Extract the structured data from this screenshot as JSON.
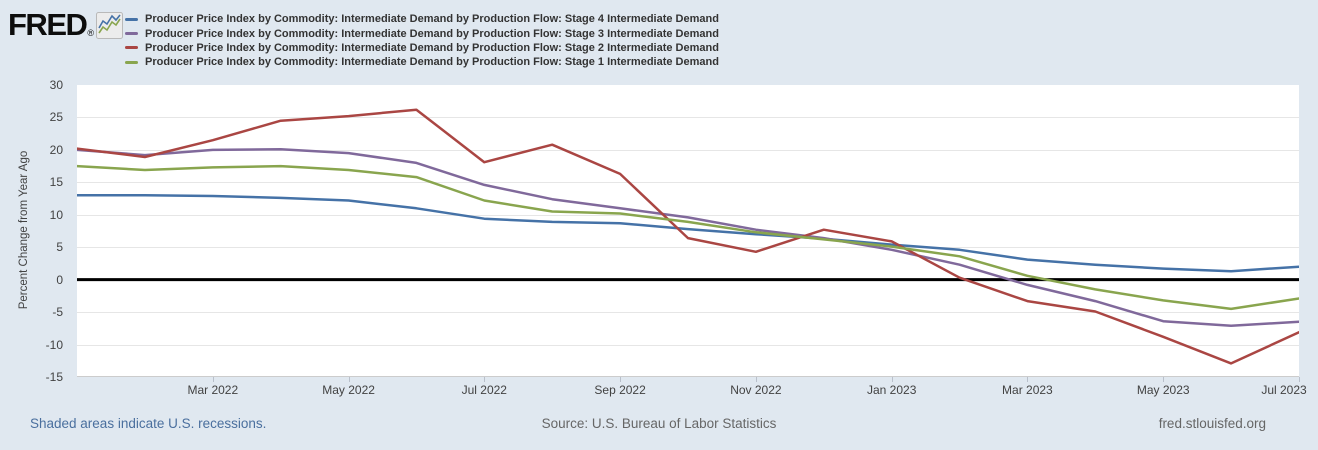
{
  "header": {
    "logo_text": "FRED",
    "logo_reg": "®"
  },
  "footer": {
    "recessions_note": "Shaded areas indicate U.S. recessions.",
    "source": "Source: U.S. Bureau of Labor Statistics",
    "site": "fred.stlouisfed.org"
  },
  "chart_data": {
    "type": "line",
    "ylabel": "Percent Change from Year Ago",
    "ylim": [
      -15,
      30
    ],
    "y_ticks": [
      30,
      25,
      20,
      15,
      10,
      5,
      0,
      -5,
      -10,
      -15
    ],
    "grid": true,
    "zero_line": true,
    "legend_position": "top-left",
    "months": [
      "2022-01",
      "2022-02",
      "2022-03",
      "2022-04",
      "2022-05",
      "2022-06",
      "2022-07",
      "2022-08",
      "2022-09",
      "2022-10",
      "2022-11",
      "2022-12",
      "2023-01",
      "2023-02",
      "2023-03",
      "2023-04",
      "2023-05",
      "2023-06",
      "2023-07"
    ],
    "x_ticks": [
      {
        "label": "Mar 2022",
        "index": 2
      },
      {
        "label": "May 2022",
        "index": 4
      },
      {
        "label": "Jul 2022",
        "index": 6
      },
      {
        "label": "Sep 2022",
        "index": 8
      },
      {
        "label": "Nov 2022",
        "index": 10
      },
      {
        "label": "Jan 2023",
        "index": 12
      },
      {
        "label": "Mar 2023",
        "index": 14
      },
      {
        "label": "May 2023",
        "index": 16
      },
      {
        "label": "Jul 2023",
        "index": 18
      }
    ],
    "series": [
      {
        "name": "Producer Price Index by Commodity: Intermediate Demand by Production Flow: Stage 4 Intermediate Demand",
        "color": "#4572a7",
        "values": [
          13.0,
          13.0,
          12.9,
          12.6,
          12.2,
          11.0,
          9.4,
          8.9,
          8.7,
          7.8,
          7.0,
          6.3,
          5.4,
          4.6,
          3.1,
          2.3,
          1.7,
          1.3,
          2.0
        ]
      },
      {
        "name": "Producer Price Index by Commodity: Intermediate Demand by Production Flow: Stage 3 Intermediate Demand",
        "color": "#80699b",
        "values": [
          20.0,
          19.2,
          20.0,
          20.1,
          19.5,
          18.0,
          14.6,
          12.4,
          11.0,
          9.6,
          7.7,
          6.4,
          4.6,
          2.3,
          -0.8,
          -3.3,
          -6.4,
          -7.1,
          -6.5
        ]
      },
      {
        "name": "Producer Price Index by Commodity: Intermediate Demand by Production Flow: Stage 2 Intermediate Demand",
        "color": "#aa4643",
        "values": [
          20.2,
          18.9,
          21.5,
          24.5,
          25.2,
          26.2,
          18.1,
          20.8,
          16.3,
          6.4,
          4.3,
          7.7,
          5.9,
          0.3,
          -3.3,
          -4.9,
          -8.8,
          -12.9,
          -8.1
        ]
      },
      {
        "name": "Producer Price Index by Commodity: Intermediate Demand by Production Flow: Stage 1 Intermediate Demand",
        "color": "#89a54e",
        "values": [
          17.5,
          16.9,
          17.3,
          17.5,
          16.9,
          15.8,
          12.2,
          10.5,
          10.2,
          8.9,
          7.3,
          6.2,
          5.1,
          3.6,
          0.6,
          -1.5,
          -3.2,
          -4.5,
          -2.9
        ]
      }
    ]
  }
}
